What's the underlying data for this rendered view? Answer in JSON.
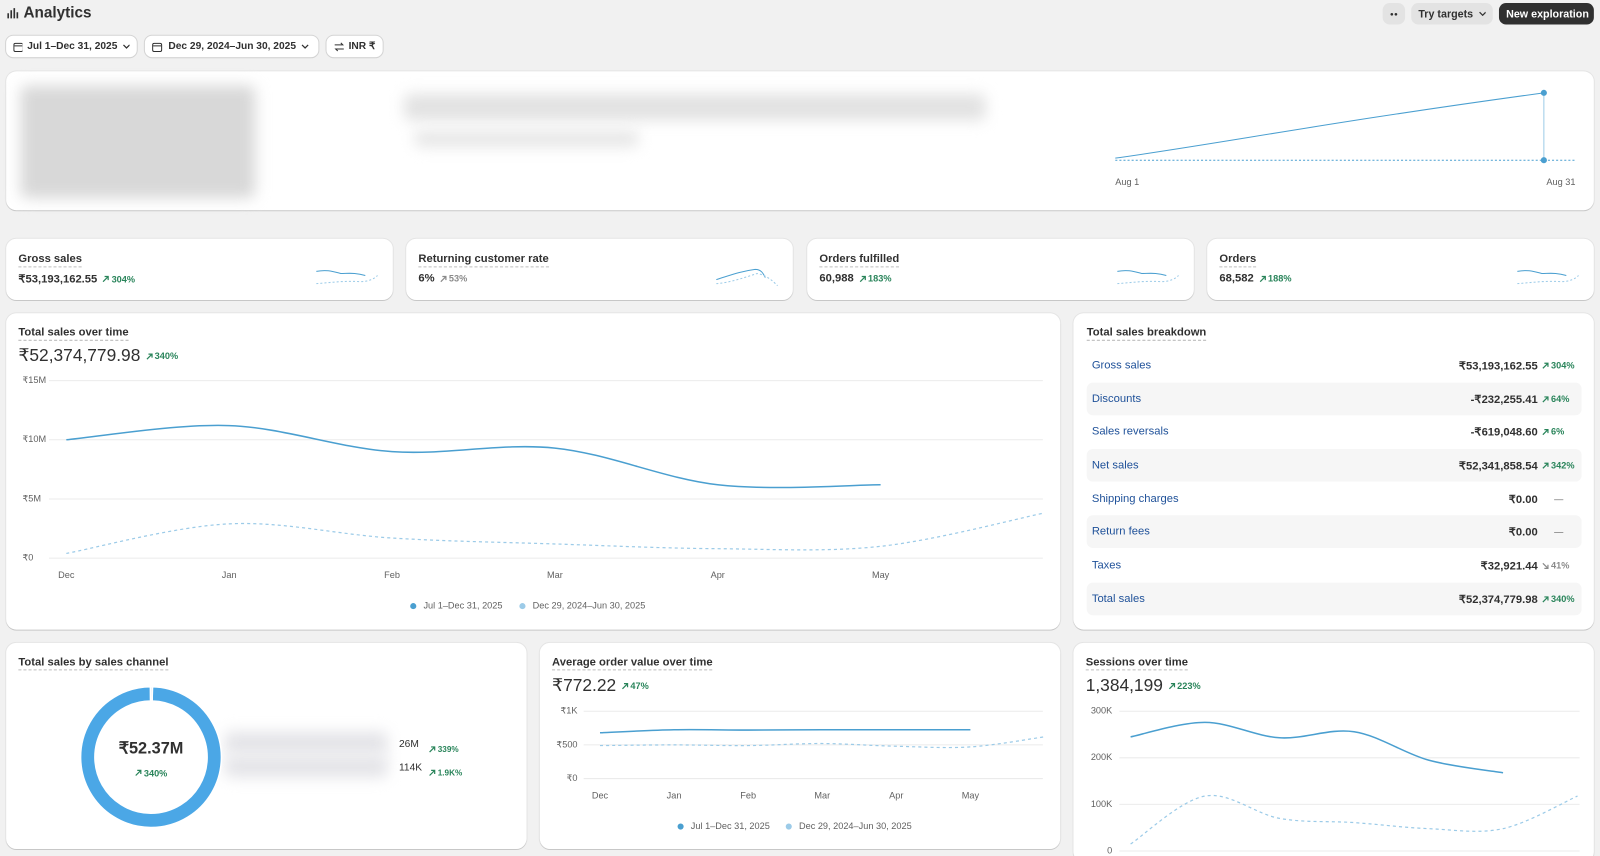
{
  "header": {
    "title": "Analytics",
    "buttons": [
      "Try targets",
      "New exploration"
    ]
  },
  "filters": [
    "Jul 1–Dec 31, 2025",
    "Dec 29, 2024–Jun 30, 2025",
    "INR ₹"
  ],
  "banner": {
    "x_labels": [
      "Aug 1",
      "Aug 31"
    ]
  },
  "kpis": [
    {
      "title": "Gross sales",
      "value": "₹53,193,162.55",
      "change": {
        "label": "304%",
        "trend": "up",
        "color": "#29845a"
      }
    },
    {
      "title": "Returning customer rate",
      "value": "6%",
      "change": {
        "label": "53%",
        "trend": "up",
        "color": "#8a8a8a"
      }
    },
    {
      "title": "Orders fulfilled",
      "value": "60,988",
      "change": {
        "label": "183%",
        "trend": "up",
        "color": "#29845a"
      }
    },
    {
      "title": "Orders",
      "value": "68,582",
      "change": {
        "label": "188%",
        "trend": "up",
        "color": "#29845a"
      }
    }
  ],
  "breakdown": {
    "title": "Total sales breakdown",
    "rows": [
      {
        "name": "Gross sales",
        "value": "₹53,193,162.55",
        "change": {
          "label": "304%",
          "trend": "up",
          "color": "#29845a"
        }
      },
      {
        "name": "Discounts",
        "value": "-₹232,255.41",
        "change": {
          "label": "64%",
          "trend": "up",
          "color": "#29845a"
        }
      },
      {
        "name": "Sales reversals",
        "value": "-₹619,048.60",
        "change": {
          "label": "6%",
          "trend": "up",
          "color": "#29845a"
        }
      },
      {
        "name": "Net sales",
        "value": "₹52,341,858.54",
        "change": {
          "label": "342%",
          "trend": "up",
          "color": "#29845a"
        }
      },
      {
        "name": "Shipping charges",
        "value": "₹0.00",
        "change": {
          "label": "—",
          "color": "#616161"
        }
      },
      {
        "name": "Return fees",
        "value": "₹0.00",
        "change": {
          "label": "—",
          "color": "#616161"
        }
      },
      {
        "name": "Taxes",
        "value": "₹32,921.44",
        "change": {
          "label": "41%",
          "trend": "down",
          "color": "#8a8a8a"
        }
      },
      {
        "name": "Total sales",
        "value": "₹52,374,779.98",
        "change": {
          "label": "340%",
          "trend": "up",
          "color": "#29845a"
        }
      }
    ]
  },
  "chart_data": [
    {
      "type": "line",
      "title": "Total sales over time",
      "value_label": "₹52,374,779.98",
      "change": {
        "label": "340%",
        "trend": "up",
        "color": "#29845a"
      },
      "categories": [
        "Dec",
        "Jan",
        "Feb",
        "Mar",
        "Apr",
        "May",
        null
      ],
      "series": [
        {
          "name": "Jul 1–Dec 31, 2025",
          "color": "#4a9fd0",
          "dashed": false,
          "values": [
            10000000,
            11200000,
            9000000,
            9300000,
            6200000,
            6200000,
            null
          ]
        },
        {
          "name": "Dec 29, 2024–Jun 30, 2025",
          "color": "#9ccbe8",
          "dashed": true,
          "values": [
            400000,
            2900000,
            1700000,
            1200000,
            800000,
            1000000,
            3800000
          ]
        }
      ],
      "ylim": [
        0,
        15000000
      ],
      "yticks": [
        {
          "value": 0,
          "label": "₹0"
        },
        {
          "value": 5000000,
          "label": "₹5M"
        },
        {
          "value": 10000000,
          "label": "₹10M"
        },
        {
          "value": 15000000,
          "label": "₹15M"
        }
      ],
      "grid": true,
      "legend": "bottom"
    },
    {
      "type": "donut",
      "title": "Total sales by sales channel",
      "center_label": "₹52.37M",
      "change": {
        "label": "340%",
        "trend": "up",
        "color": "#29845a"
      },
      "values": [
        26000000,
        114000
      ],
      "value_labels": [
        "26M",
        "114K"
      ],
      "changes": [
        {
          "label": "339%",
          "trend": "up",
          "color": "#29845a"
        },
        {
          "label": "1.9K%",
          "trend": "up",
          "color": "#29845a"
        }
      ],
      "colors": [
        "#4ba7e6",
        "#c9def0"
      ]
    },
    {
      "type": "line",
      "title": "Average order value over time",
      "value_label": "₹772.22",
      "change": {
        "label": "47%",
        "trend": "up",
        "color": "#29845a"
      },
      "categories": [
        "Dec",
        "Jan",
        "Feb",
        "Mar",
        "Apr",
        "May",
        null
      ],
      "series": [
        {
          "name": "Jul 1–Dec 31, 2025",
          "color": "#4a9fd0",
          "dashed": false,
          "values": [
            680,
            725,
            720,
            725,
            725,
            725,
            null
          ]
        },
        {
          "name": "Dec 29, 2024–Jun 30, 2025",
          "color": "#9ccbe8",
          "dashed": true,
          "values": [
            490,
            500,
            490,
            520,
            480,
            470,
            620
          ]
        }
      ],
      "ylim": [
        0,
        1000
      ],
      "yticks": [
        {
          "value": 0,
          "label": "₹0"
        },
        {
          "value": 500,
          "label": "₹500"
        },
        {
          "value": 1000,
          "label": "₹1K"
        }
      ],
      "grid": true,
      "legend": "bottom"
    },
    {
      "type": "line",
      "title": "Sessions over time",
      "value_label": "1,384,199",
      "change": {
        "label": "223%",
        "trend": "up",
        "color": "#29845a"
      },
      "categories": [
        null,
        null,
        null,
        null,
        null,
        null,
        null
      ],
      "series": [
        {
          "color": "#4a9fd0",
          "dashed": false,
          "values": [
            245000,
            276000,
            243000,
            256000,
            195000,
            168000,
            null
          ]
        },
        {
          "color": "#9ccbe8",
          "dashed": true,
          "values": [
            15000,
            118000,
            70000,
            61000,
            48000,
            48000,
            118000
          ]
        }
      ],
      "ylim": [
        0,
        300000
      ],
      "yticks": [
        0,
        {
          "value": 100000,
          "label": "100K"
        },
        {
          "value": 200000,
          "label": "200K"
        },
        {
          "value": 300000,
          "label": "300K"
        }
      ],
      "grid": true
    }
  ]
}
